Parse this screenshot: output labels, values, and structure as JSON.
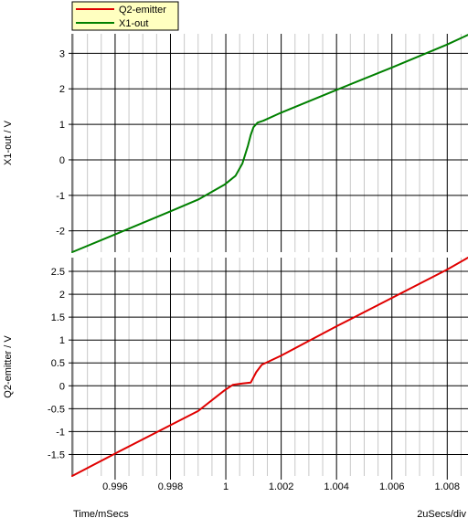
{
  "chart_data": [
    {
      "type": "line",
      "panel": "top",
      "ylabel": "X1-out / V",
      "ylim": [
        -2.6,
        3.55
      ],
      "yticks": [
        3,
        2,
        1,
        0,
        -1,
        -2
      ],
      "ytick_labels": [
        "3",
        "2",
        "1",
        "0",
        "-1",
        "-2"
      ],
      "series": [
        {
          "name": "X1-out",
          "color": "#008000",
          "x": [
            0.99445,
            0.996,
            0.998,
            0.999,
            0.99995,
            1.00035,
            1.0006,
            1.0008,
            1.0009,
            1.001,
            1.00115,
            1.00135,
            1.002,
            1.004,
            1.006,
            1.008,
            1.00875
          ],
          "y": [
            -2.6,
            -2.1,
            -1.45,
            -1.12,
            -0.7,
            -0.45,
            -0.1,
            0.4,
            0.7,
            0.92,
            1.05,
            1.1,
            1.33,
            1.97,
            2.6,
            3.25,
            3.52
          ]
        }
      ]
    },
    {
      "type": "line",
      "panel": "bottom",
      "ylabel": "Q2-emitter / V",
      "ylim": [
        -1.97,
        2.8
      ],
      "yticks": [
        2.5,
        2,
        1.5,
        1,
        0.5,
        0,
        -0.5,
        -1,
        -1.5
      ],
      "ytick_labels": [
        "2.5",
        "2",
        "1.5",
        "1",
        "0.5",
        "0",
        "-0.5",
        "-1",
        "-1.5"
      ],
      "xlabel": "Time/mSecs",
      "x_scale_label": "2uSecs/div",
      "xlim": [
        0.99445,
        1.00875
      ],
      "xticks": [
        0.996,
        0.998,
        1.0,
        1.002,
        1.004,
        1.006,
        1.008
      ],
      "xtick_labels": [
        "0.996",
        "0.998",
        "1",
        "1.002",
        "1.004",
        "1.006",
        "1.008"
      ],
      "series": [
        {
          "name": "Q2-emitter",
          "color": "#e00000",
          "x": [
            0.99445,
            0.996,
            0.998,
            0.999,
            0.99995,
            1.00025,
            1.0006,
            1.0009,
            1.0011,
            1.0013,
            1.002,
            1.004,
            1.006,
            1.008,
            1.00875
          ],
          "y": [
            -1.97,
            -1.48,
            -0.86,
            -0.55,
            -0.1,
            0.02,
            0.05,
            0.07,
            0.3,
            0.46,
            0.66,
            1.3,
            1.92,
            2.54,
            2.8
          ]
        }
      ]
    }
  ],
  "legend": {
    "entries": [
      {
        "label": "Q2-emitter",
        "color": "#e00000"
      },
      {
        "label": "X1-out",
        "color": "#008000"
      }
    ],
    "placement": "top-left"
  }
}
